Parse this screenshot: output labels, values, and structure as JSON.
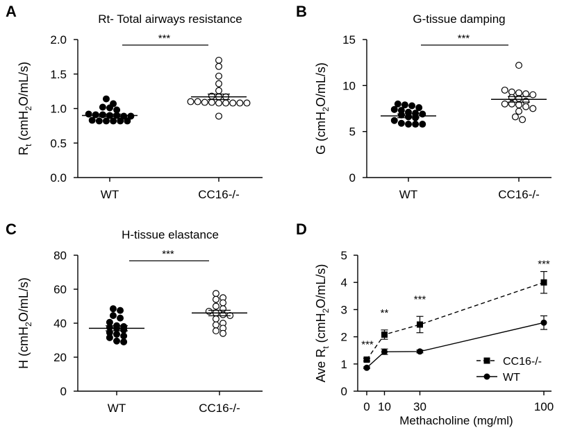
{
  "chart_data": [
    {
      "panel": "A",
      "type": "scatter",
      "title": "Rt- Total airways resistance",
      "ylabel_main": "R",
      "ylabel_sub": "t",
      "ylabel_rest": " (cmH",
      "ylabel_sub2": "2",
      "ylabel_tail": "O/mL/s)",
      "ylim": [
        0,
        2.0
      ],
      "yticks": [
        "0.0",
        "0.5",
        "1.0",
        "1.5",
        "2.0"
      ],
      "categories": [
        "WT",
        "CC16-/-"
      ],
      "significance": "***",
      "series": [
        {
          "category": "WT",
          "filled": true,
          "values": [
            1.14,
            1.07,
            1.02,
            1.01,
            0.98,
            0.92,
            0.91,
            0.91,
            0.9,
            0.9,
            0.89,
            0.89,
            0.83,
            0.82,
            0.82,
            0.82,
            0.82,
            0.82
          ],
          "mean": 0.9,
          "sem": 0.02
        },
        {
          "category": "CC16-/-",
          "filled": false,
          "values": [
            1.7,
            1.61,
            1.47,
            1.36,
            1.26,
            1.18,
            1.17,
            1.17,
            1.1,
            1.1,
            1.09,
            1.09,
            1.08,
            1.08,
            1.08,
            1.08,
            1.08,
            0.89
          ],
          "mean": 1.17,
          "sem": 0.04
        }
      ]
    },
    {
      "panel": "B",
      "type": "scatter",
      "title": "G-tissue damping",
      "ylabel_main": "G (cmH",
      "ylabel_sub": "2",
      "ylabel_rest": "O/mL/s)",
      "ylim": [
        0,
        15
      ],
      "yticks": [
        "0",
        "5",
        "10",
        "15"
      ],
      "categories": [
        "WT",
        "CC16-/-"
      ],
      "significance": "***",
      "series": [
        {
          "category": "WT",
          "filled": true,
          "values": [
            8.0,
            7.9,
            7.8,
            7.6,
            7.4,
            7.3,
            7.1,
            7.0,
            6.9,
            6.8,
            6.6,
            6.5,
            6.2,
            5.9,
            5.8,
            5.8,
            5.8
          ],
          "mean": 6.7,
          "sem": 0.2
        },
        {
          "category": "CC16-/-",
          "filled": false,
          "values": [
            12.2,
            9.5,
            9.3,
            9.2,
            9.1,
            9.0,
            8.7,
            8.6,
            8.3,
            8.0,
            8.0,
            7.9,
            7.7,
            7.5,
            7.2,
            6.6,
            6.3
          ],
          "mean": 8.5,
          "sem": 0.3
        }
      ]
    },
    {
      "panel": "C",
      "type": "scatter",
      "title": "H-tissue elastance",
      "ylabel_main": "H (cmH",
      "ylabel_sub": "2",
      "ylabel_rest": "O/mL/s)",
      "ylim": [
        0,
        80
      ],
      "yticks": [
        "0",
        "20",
        "40",
        "60",
        "80"
      ],
      "categories": [
        "WT",
        "CC16-/-"
      ],
      "significance": "***",
      "series": [
        {
          "category": "WT",
          "filled": true,
          "values": [
            48.5,
            47.5,
            44.5,
            43.0,
            40.5,
            38.5,
            38.0,
            37.5,
            37.0,
            36.0,
            34.5,
            33.5,
            32.5,
            31.5,
            29.5,
            29.0
          ],
          "mean": 37.0,
          "sem": 1.5
        },
        {
          "category": "CC16-/-",
          "filled": false,
          "values": [
            57.5,
            55.0,
            54.0,
            52.0,
            50.0,
            48.5,
            47.0,
            46.0,
            45.0,
            44.5,
            42.5,
            40.0,
            39.0,
            37.0,
            35.5,
            34.0
          ],
          "mean": 46.0,
          "sem": 1.6
        }
      ]
    },
    {
      "panel": "D",
      "type": "line",
      "ylabel_main": "Ave R",
      "ylabel_sub": "t",
      "ylabel_rest": " (cmH",
      "ylabel_sub2": "2",
      "ylabel_tail": "O/mL/s)",
      "xlabel": "Methacholine (mg/ml)",
      "xlim": [
        -3,
        103
      ],
      "ylim": [
        0,
        5
      ],
      "x": [
        0,
        10,
        30,
        100
      ],
      "xticks": [
        "0",
        "10",
        "30",
        "100"
      ],
      "yticks": [
        "0",
        "1",
        "2",
        "3",
        "4",
        "5"
      ],
      "legend_position": "bottom-right",
      "annotations": [
        "***",
        "**",
        "***",
        "***"
      ],
      "series": [
        {
          "name": "CC16-/-",
          "marker": "square",
          "dashed": true,
          "values": [
            1.16,
            2.08,
            2.45,
            4.0
          ],
          "errors": [
            0.05,
            0.17,
            0.3,
            0.4
          ]
        },
        {
          "name": "WT",
          "marker": "circle",
          "dashed": false,
          "values": [
            0.86,
            1.45,
            1.46,
            2.52
          ],
          "errors": [
            0.03,
            0.1,
            0.05,
            0.25
          ]
        }
      ]
    }
  ]
}
